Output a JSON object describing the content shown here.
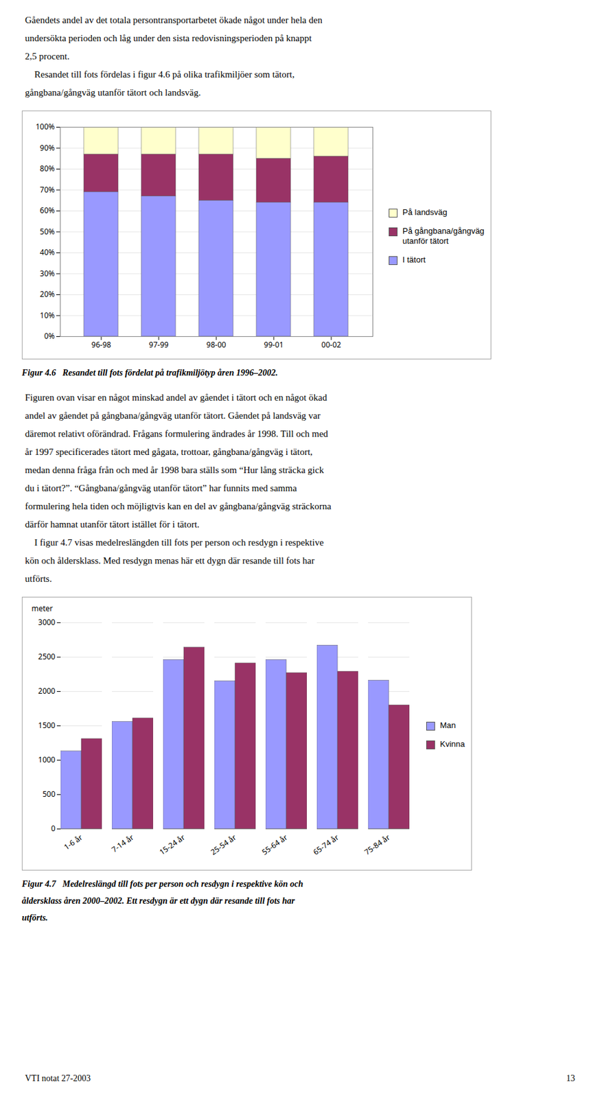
{
  "text_top": [
    "Gåendets andel av det totala persontransportarbetet ökade något under hela den",
    "undersökta perioden och låg under den sista redovisningsperioden på knappt",
    "2,5 procent.",
    "    Resandet till fots fördelas i figur 4.6 på olika trafikmiljöer som tätort,",
    "gångbana/gångväg utanför tätort och landsväg."
  ],
  "text_middle": [
    "Figuren ovan visar en något minskad andel av gåendet i tätort och en något ökad",
    "andel av gåendet på gångbana/gångväg utanför tätort. Gåendet på landsväg var",
    "däremot relativt oförändrad. Frågans formulering ändrades år 1998. Till och med",
    "år 1997 specificerades tätort med gågata, trottoar, gångbana/gångväg i tätort,",
    "medan denna fråga från och med år 1998 bara ställs som “Hur lång sträcka gick",
    "du i tätort?”. “Gångbana/gångväg utanför tätort” har funnits med samma",
    "formulering hela tiden och möjligtvis kan en del av gångbana/gångväg sträckorna",
    "därför hamnat utanför tätort istället för i tätort.",
    "    I figur 4.7 visas medelreslängden till fots per person och resdygn i respektive",
    "kön och åldersklass. Med resdygn menas här ett dygn där resande till fots har",
    "utförts."
  ],
  "footer_left": "VTI notat 27-2003",
  "footer_right": "13",
  "chart_data": [
    {
      "type": "bar",
      "stacked": true,
      "caption": [
        "Figur 4.6   Resandet till fots fördelat på trafikmiljötyp åren 1996–2002."
      ],
      "categories": [
        "96-98",
        "97-99",
        "98-00",
        "99-01",
        "00-02"
      ],
      "series": [
        {
          "name": "I tätort",
          "color": "#9999FF",
          "values": [
            69,
            67,
            65,
            64,
            64
          ]
        },
        {
          "name": "På gångbana/gångväg\nutanför tätort",
          "color": "#993366",
          "values": [
            18,
            20,
            22,
            21,
            22
          ]
        },
        {
          "name": "På landsväg",
          "color": "#FFFFCC",
          "values": [
            13,
            13,
            13,
            15,
            14
          ]
        }
      ],
      "ylim": [
        0,
        100
      ],
      "yticks": [
        {
          "value": 0,
          "label": "0%"
        },
        {
          "value": 10,
          "label": "10%"
        },
        {
          "value": 20,
          "label": "20%"
        },
        {
          "value": 30,
          "label": "30%"
        },
        {
          "value": 40,
          "label": "40%"
        },
        {
          "value": 50,
          "label": "50%"
        },
        {
          "value": 60,
          "label": "60%"
        },
        {
          "value": 70,
          "label": "70%"
        },
        {
          "value": 80,
          "label": "80%"
        },
        {
          "value": 90,
          "label": "90%"
        },
        {
          "value": 100,
          "label": "100%"
        }
      ],
      "grid": true,
      "legend": "right"
    },
    {
      "type": "bar",
      "stacked": false,
      "caption": [
        "Figur 4.7   Medelreslängd till fots per person och resdygn i respektive kön och",
        "åldersklass åren 2000–2002. Ett resdygn är ett dygn där resande till fots har",
        "utförts."
      ],
      "y_label": "meter",
      "categories": [
        "1-6 år",
        "7-14 år",
        "15-24 år",
        "25-54 år",
        "55-64 år",
        "65-74 år",
        "75-84 år"
      ],
      "series": [
        {
          "name": "Man",
          "color": "#9999FF",
          "values": [
            1130,
            1560,
            2460,
            2150,
            2460,
            2670,
            2160
          ]
        },
        {
          "name": "Kvinna",
          "color": "#993366",
          "values": [
            1310,
            1610,
            2640,
            2410,
            2270,
            2290,
            1800
          ]
        }
      ],
      "ylim": [
        0,
        3000
      ],
      "yticks": [
        0,
        500,
        1000,
        1500,
        2000,
        2500,
        3000
      ],
      "grid": true,
      "legend": "right"
    }
  ]
}
